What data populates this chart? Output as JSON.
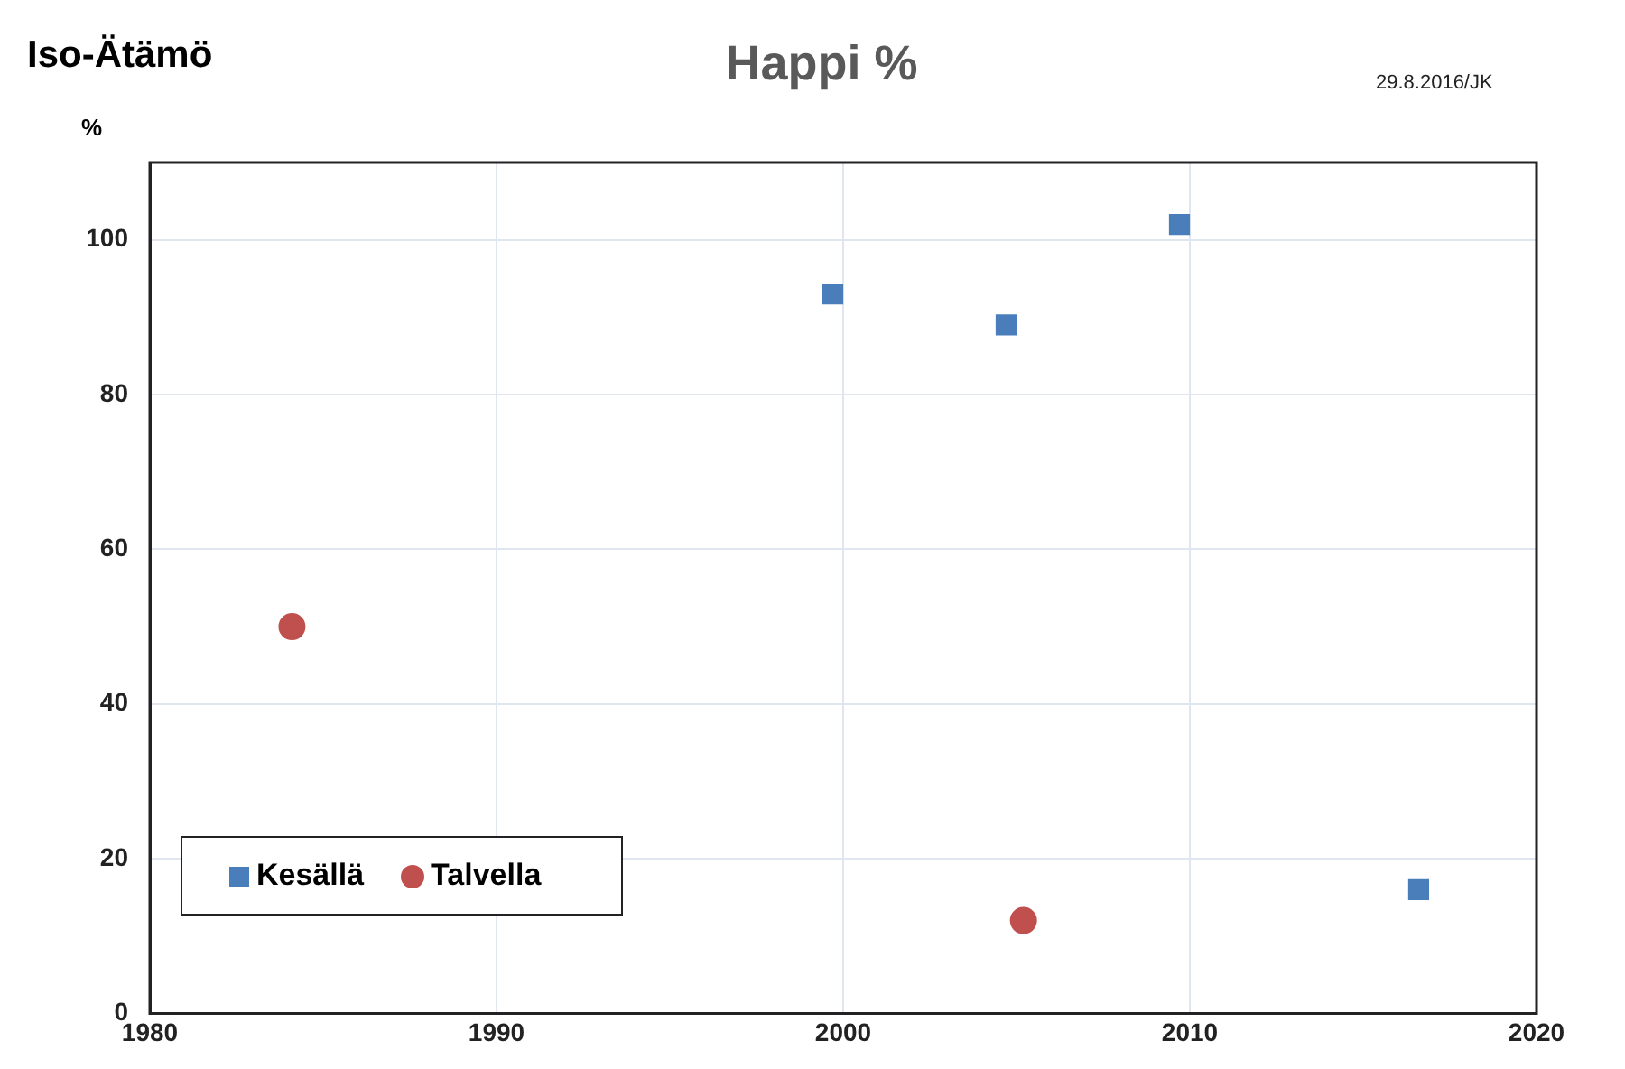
{
  "chart_data": {
    "type": "scatter",
    "title": "Happi %",
    "subtitle": "Iso-Ätämö",
    "ylabel": "%",
    "annotations": [
      "29.8.2016/JK"
    ],
    "series": [
      {
        "name": "Kesällä",
        "color": "#4a7ebb",
        "marker": "square",
        "x": [
          1999.7,
          2004.7,
          2009.7,
          2016.6
        ],
        "values": [
          93,
          89,
          102,
          16
        ]
      },
      {
        "name": "Talvella",
        "color": "#c0504d",
        "marker": "circle",
        "x": [
          1984.1,
          2005.2
        ],
        "values": [
          50,
          12
        ]
      }
    ],
    "xlim": [
      1980,
      2020
    ],
    "xticks": [
      1980,
      1990,
      2000,
      2010,
      2020
    ],
    "ylim": [
      0,
      110
    ],
    "yticks": [
      0,
      20,
      40,
      60,
      80,
      100
    ],
    "grid": true,
    "legend": "bottom left"
  }
}
